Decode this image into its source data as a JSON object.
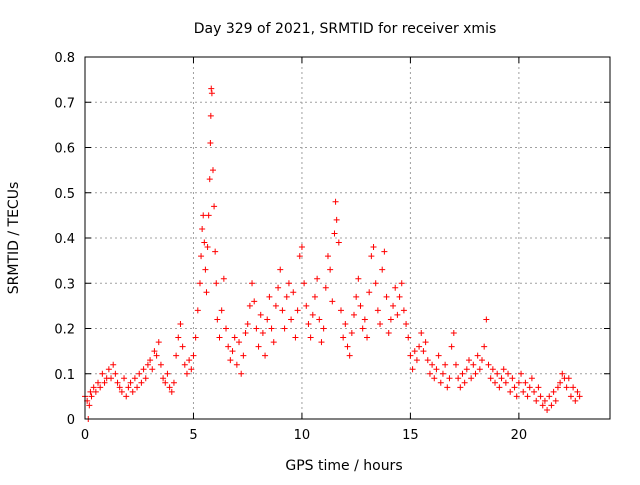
{
  "chart_data": {
    "type": "scatter",
    "title": "Day 329 of 2021, SRMTID for receiver xmis",
    "xlabel": "GPS time / hours",
    "ylabel": "SRMTID / TECUs",
    "xlim": [
      0,
      24.2
    ],
    "ylim": [
      0,
      0.8
    ],
    "x_ticks": [
      0,
      5,
      10,
      15,
      20
    ],
    "y_ticks": [
      0,
      0.1,
      0.2,
      0.3,
      0.4,
      0.5,
      0.6,
      0.7,
      0.8
    ],
    "x_tick_labels": [
      "0",
      "5",
      "10",
      "15",
      "20"
    ],
    "y_tick_labels": [
      "0",
      "0.1",
      "0.2",
      "0.3",
      "0.4",
      "0.5",
      "0.6",
      "0.7",
      "0.8"
    ],
    "grid": true,
    "marker": "+",
    "marker_color": "#ff0000",
    "series": [
      {
        "name": "SRMTID",
        "points": [
          [
            0.0,
            0.05
          ],
          [
            0.1,
            0.04
          ],
          [
            0.15,
            0.0
          ],
          [
            0.2,
            0.03
          ],
          [
            0.25,
            0.06
          ],
          [
            0.3,
            0.05
          ],
          [
            0.4,
            0.07
          ],
          [
            0.5,
            0.06
          ],
          [
            0.6,
            0.08
          ],
          [
            0.7,
            0.07
          ],
          [
            0.8,
            0.1
          ],
          [
            0.9,
            0.08
          ],
          [
            1.0,
            0.09
          ],
          [
            1.1,
            0.11
          ],
          [
            1.2,
            0.09
          ],
          [
            1.3,
            0.12
          ],
          [
            1.4,
            0.1
          ],
          [
            1.5,
            0.08
          ],
          [
            1.6,
            0.07
          ],
          [
            1.7,
            0.06
          ],
          [
            1.8,
            0.09
          ],
          [
            1.9,
            0.05
          ],
          [
            2.0,
            0.07
          ],
          [
            2.1,
            0.08
          ],
          [
            2.2,
            0.06
          ],
          [
            2.3,
            0.09
          ],
          [
            2.4,
            0.07
          ],
          [
            2.5,
            0.1
          ],
          [
            2.6,
            0.08
          ],
          [
            2.7,
            0.11
          ],
          [
            2.8,
            0.09
          ],
          [
            2.9,
            0.12
          ],
          [
            3.0,
            0.13
          ],
          [
            3.1,
            0.11
          ],
          [
            3.2,
            0.15
          ],
          [
            3.3,
            0.14
          ],
          [
            3.4,
            0.17
          ],
          [
            3.5,
            0.12
          ],
          [
            3.6,
            0.09
          ],
          [
            3.7,
            0.08
          ],
          [
            3.8,
            0.1
          ],
          [
            3.9,
            0.07
          ],
          [
            4.0,
            0.06
          ],
          [
            4.1,
            0.08
          ],
          [
            4.2,
            0.14
          ],
          [
            4.3,
            0.18
          ],
          [
            4.4,
            0.21
          ],
          [
            4.5,
            0.16
          ],
          [
            4.6,
            0.12
          ],
          [
            4.7,
            0.1
          ],
          [
            4.8,
            0.13
          ],
          [
            4.9,
            0.11
          ],
          [
            5.0,
            0.14
          ],
          [
            5.1,
            0.18
          ],
          [
            5.2,
            0.24
          ],
          [
            5.3,
            0.3
          ],
          [
            5.35,
            0.36
          ],
          [
            5.4,
            0.42
          ],
          [
            5.45,
            0.45
          ],
          [
            5.5,
            0.39
          ],
          [
            5.55,
            0.33
          ],
          [
            5.6,
            0.28
          ],
          [
            5.65,
            0.38
          ],
          [
            5.7,
            0.45
          ],
          [
            5.75,
            0.53
          ],
          [
            5.78,
            0.61
          ],
          [
            5.8,
            0.67
          ],
          [
            5.82,
            0.73
          ],
          [
            5.85,
            0.72
          ],
          [
            5.9,
            0.55
          ],
          [
            5.95,
            0.47
          ],
          [
            6.0,
            0.37
          ],
          [
            6.05,
            0.3
          ],
          [
            6.1,
            0.22
          ],
          [
            6.2,
            0.18
          ],
          [
            6.3,
            0.24
          ],
          [
            6.4,
            0.31
          ],
          [
            6.5,
            0.2
          ],
          [
            6.6,
            0.16
          ],
          [
            6.7,
            0.13
          ],
          [
            6.8,
            0.15
          ],
          [
            6.9,
            0.18
          ],
          [
            7.0,
            0.12
          ],
          [
            7.1,
            0.17
          ],
          [
            7.2,
            0.1
          ],
          [
            7.3,
            0.14
          ],
          [
            7.4,
            0.19
          ],
          [
            7.5,
            0.21
          ],
          [
            7.6,
            0.25
          ],
          [
            7.7,
            0.3
          ],
          [
            7.8,
            0.26
          ],
          [
            7.9,
            0.2
          ],
          [
            8.0,
            0.16
          ],
          [
            8.1,
            0.23
          ],
          [
            8.2,
            0.19
          ],
          [
            8.3,
            0.14
          ],
          [
            8.4,
            0.22
          ],
          [
            8.5,
            0.27
          ],
          [
            8.6,
            0.2
          ],
          [
            8.7,
            0.17
          ],
          [
            8.8,
            0.25
          ],
          [
            8.9,
            0.29
          ],
          [
            9.0,
            0.33
          ],
          [
            9.1,
            0.24
          ],
          [
            9.2,
            0.2
          ],
          [
            9.3,
            0.27
          ],
          [
            9.4,
            0.3
          ],
          [
            9.5,
            0.22
          ],
          [
            9.6,
            0.28
          ],
          [
            9.7,
            0.18
          ],
          [
            9.8,
            0.24
          ],
          [
            9.9,
            0.36
          ],
          [
            10.0,
            0.38
          ],
          [
            10.1,
            0.3
          ],
          [
            10.2,
            0.25
          ],
          [
            10.3,
            0.21
          ],
          [
            10.4,
            0.18
          ],
          [
            10.5,
            0.23
          ],
          [
            10.6,
            0.27
          ],
          [
            10.7,
            0.31
          ],
          [
            10.8,
            0.22
          ],
          [
            10.9,
            0.17
          ],
          [
            11.0,
            0.2
          ],
          [
            11.1,
            0.29
          ],
          [
            11.2,
            0.36
          ],
          [
            11.3,
            0.33
          ],
          [
            11.4,
            0.26
          ],
          [
            11.5,
            0.41
          ],
          [
            11.55,
            0.48
          ],
          [
            11.6,
            0.44
          ],
          [
            11.7,
            0.39
          ],
          [
            11.8,
            0.24
          ],
          [
            11.9,
            0.18
          ],
          [
            12.0,
            0.21
          ],
          [
            12.1,
            0.16
          ],
          [
            12.2,
            0.14
          ],
          [
            12.3,
            0.19
          ],
          [
            12.4,
            0.23
          ],
          [
            12.5,
            0.27
          ],
          [
            12.6,
            0.31
          ],
          [
            12.7,
            0.25
          ],
          [
            12.8,
            0.2
          ],
          [
            12.9,
            0.22
          ],
          [
            13.0,
            0.18
          ],
          [
            13.1,
            0.28
          ],
          [
            13.2,
            0.36
          ],
          [
            13.3,
            0.38
          ],
          [
            13.4,
            0.3
          ],
          [
            13.5,
            0.24
          ],
          [
            13.6,
            0.21
          ],
          [
            13.7,
            0.33
          ],
          [
            13.8,
            0.37
          ],
          [
            13.9,
            0.27
          ],
          [
            14.0,
            0.19
          ],
          [
            14.1,
            0.22
          ],
          [
            14.2,
            0.25
          ],
          [
            14.3,
            0.29
          ],
          [
            14.4,
            0.23
          ],
          [
            14.5,
            0.27
          ],
          [
            14.6,
            0.3
          ],
          [
            14.7,
            0.24
          ],
          [
            14.8,
            0.21
          ],
          [
            14.9,
            0.18
          ],
          [
            15.0,
            0.14
          ],
          [
            15.1,
            0.11
          ],
          [
            15.2,
            0.15
          ],
          [
            15.3,
            0.13
          ],
          [
            15.4,
            0.16
          ],
          [
            15.5,
            0.19
          ],
          [
            15.6,
            0.15
          ],
          [
            15.7,
            0.17
          ],
          [
            15.8,
            0.13
          ],
          [
            15.9,
            0.1
          ],
          [
            16.0,
            0.12
          ],
          [
            16.1,
            0.09
          ],
          [
            16.2,
            0.11
          ],
          [
            16.3,
            0.14
          ],
          [
            16.4,
            0.08
          ],
          [
            16.5,
            0.1
          ],
          [
            16.6,
            0.12
          ],
          [
            16.7,
            0.07
          ],
          [
            16.8,
            0.09
          ],
          [
            16.9,
            0.16
          ],
          [
            17.0,
            0.19
          ],
          [
            17.1,
            0.12
          ],
          [
            17.2,
            0.09
          ],
          [
            17.3,
            0.07
          ],
          [
            17.4,
            0.1
          ],
          [
            17.5,
            0.08
          ],
          [
            17.6,
            0.11
          ],
          [
            17.7,
            0.13
          ],
          [
            17.8,
            0.09
          ],
          [
            17.9,
            0.12
          ],
          [
            18.0,
            0.1
          ],
          [
            18.1,
            0.14
          ],
          [
            18.2,
            0.11
          ],
          [
            18.3,
            0.13
          ],
          [
            18.4,
            0.16
          ],
          [
            18.5,
            0.22
          ],
          [
            18.6,
            0.12
          ],
          [
            18.7,
            0.09
          ],
          [
            18.8,
            0.11
          ],
          [
            18.9,
            0.08
          ],
          [
            19.0,
            0.1
          ],
          [
            19.1,
            0.07
          ],
          [
            19.2,
            0.09
          ],
          [
            19.3,
            0.11
          ],
          [
            19.4,
            0.08
          ],
          [
            19.5,
            0.1
          ],
          [
            19.6,
            0.06
          ],
          [
            19.7,
            0.09
          ],
          [
            19.8,
            0.07
          ],
          [
            19.9,
            0.05
          ],
          [
            20.0,
            0.08
          ],
          [
            20.1,
            0.1
          ],
          [
            20.2,
            0.06
          ],
          [
            20.3,
            0.08
          ],
          [
            20.4,
            0.05
          ],
          [
            20.5,
            0.07
          ],
          [
            20.6,
            0.09
          ],
          [
            20.7,
            0.06
          ],
          [
            20.8,
            0.04
          ],
          [
            20.9,
            0.07
          ],
          [
            21.0,
            0.05
          ],
          [
            21.1,
            0.03
          ],
          [
            21.2,
            0.04
          ],
          [
            21.3,
            0.02
          ],
          [
            21.4,
            0.05
          ],
          [
            21.5,
            0.03
          ],
          [
            21.6,
            0.06
          ],
          [
            21.7,
            0.04
          ],
          [
            21.8,
            0.07
          ],
          [
            21.9,
            0.08
          ],
          [
            22.0,
            0.1
          ],
          [
            22.1,
            0.09
          ],
          [
            22.2,
            0.07
          ],
          [
            22.3,
            0.09
          ],
          [
            22.4,
            0.05
          ],
          [
            22.5,
            0.07
          ],
          [
            22.6,
            0.04
          ],
          [
            22.7,
            0.06
          ],
          [
            22.8,
            0.05
          ]
        ]
      }
    ]
  }
}
